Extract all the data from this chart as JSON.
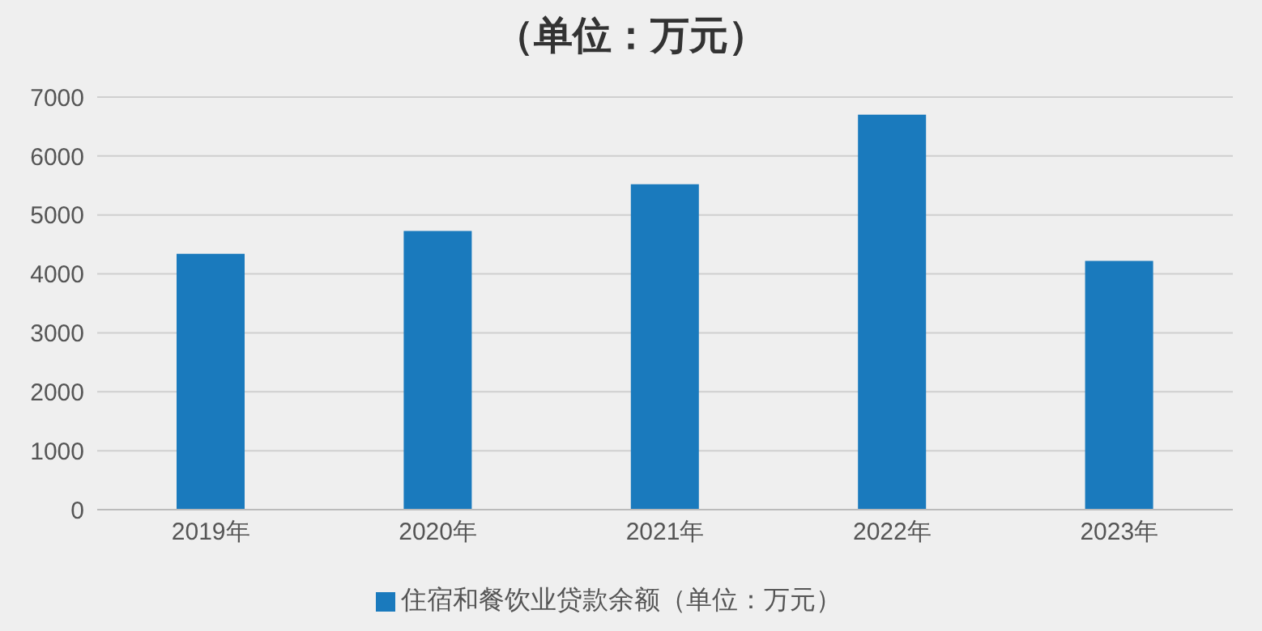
{
  "chart_data": {
    "type": "bar",
    "title": "（单位：万元）",
    "categories": [
      "2019年",
      "2020年",
      "2021年",
      "2022年",
      "2023年"
    ],
    "series": [
      {
        "name": "住宿和餐饮业贷款余额（单位：万元）",
        "color": "#1a7abd",
        "values": [
          4340,
          4730,
          5520,
          6700,
          4220
        ]
      }
    ],
    "ylim": [
      0,
      7000
    ],
    "yticks": [
      0,
      1000,
      2000,
      3000,
      4000,
      5000,
      6000,
      7000
    ],
    "grid": "y",
    "legend": "bottom"
  }
}
